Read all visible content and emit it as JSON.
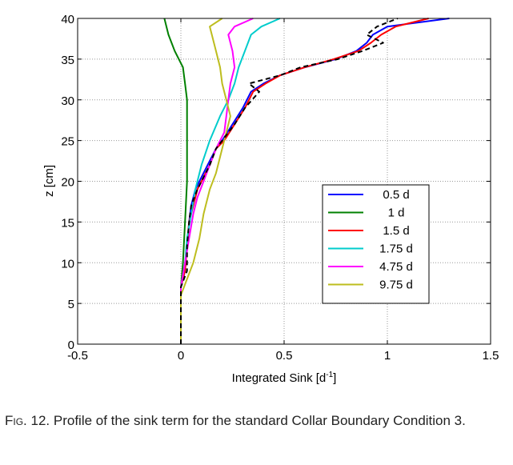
{
  "chart_data": {
    "type": "line",
    "title": "",
    "xlabel": "Integrated Sink [d",
    "xlabel_sup": "-1",
    "xlabel_end": "]",
    "ylabel": "z [cm]",
    "xlim": [
      -0.5,
      1.5
    ],
    "ylim": [
      0,
      40
    ],
    "x_ticks": [
      -0.5,
      0,
      0.5,
      1,
      1.5
    ],
    "x_tick_labels": [
      "-0.5",
      "0",
      "0.5",
      "1",
      "1.5"
    ],
    "y_ticks": [
      0,
      5,
      10,
      15,
      20,
      25,
      30,
      35,
      40
    ],
    "y_tick_labels": [
      "0",
      "5",
      "10",
      "15",
      "20",
      "25",
      "30",
      "35",
      "40"
    ],
    "grid": true,
    "legend_position": "lower-right",
    "series": [
      {
        "name": "0.5 d",
        "color": "#0000ff",
        "points": [
          [
            0,
            0
          ],
          [
            0,
            5
          ],
          [
            0,
            7
          ],
          [
            0.02,
            9
          ],
          [
            0.03,
            12
          ],
          [
            0.04,
            15
          ],
          [
            0.05,
            17
          ],
          [
            0.07,
            19
          ],
          [
            0.09,
            20
          ],
          [
            0.13,
            22
          ],
          [
            0.17,
            24
          ],
          [
            0.2,
            25
          ],
          [
            0.25,
            27
          ],
          [
            0.3,
            29
          ],
          [
            0.34,
            31
          ],
          [
            0.4,
            32
          ],
          [
            0.48,
            33
          ],
          [
            0.6,
            34
          ],
          [
            0.75,
            35
          ],
          [
            0.85,
            36
          ],
          [
            0.9,
            37
          ],
          [
            0.93,
            38
          ],
          [
            1.0,
            39
          ],
          [
            1.3,
            40
          ]
        ]
      },
      {
        "name": "1 d",
        "color": "#008000",
        "points": [
          [
            0,
            0
          ],
          [
            0,
            5
          ],
          [
            0,
            7
          ],
          [
            0.01,
            10
          ],
          [
            0.02,
            15
          ],
          [
            0.03,
            20
          ],
          [
            0.03,
            25
          ],
          [
            0.03,
            30
          ],
          [
            0.02,
            32
          ],
          [
            0.01,
            34
          ],
          [
            -0.03,
            36
          ],
          [
            -0.06,
            38
          ],
          [
            -0.08,
            40
          ]
        ]
      },
      {
        "name": "1.5 d",
        "color": "#ff0000",
        "points": [
          [
            0,
            0
          ],
          [
            0,
            5
          ],
          [
            0,
            7
          ],
          [
            0.02,
            9
          ],
          [
            0.03,
            12
          ],
          [
            0.04,
            15
          ],
          [
            0.06,
            17
          ],
          [
            0.08,
            19
          ],
          [
            0.1,
            20
          ],
          [
            0.14,
            22
          ],
          [
            0.17,
            24
          ],
          [
            0.21,
            25
          ],
          [
            0.26,
            27
          ],
          [
            0.31,
            29
          ],
          [
            0.35,
            31
          ],
          [
            0.41,
            32
          ],
          [
            0.48,
            33
          ],
          [
            0.6,
            34
          ],
          [
            0.74,
            35
          ],
          [
            0.86,
            36
          ],
          [
            0.92,
            37
          ],
          [
            0.97,
            38
          ],
          [
            1.04,
            39
          ],
          [
            1.2,
            40
          ]
        ]
      },
      {
        "name": "1.75 d",
        "color": "#00cccc",
        "points": [
          [
            0,
            0
          ],
          [
            0,
            5
          ],
          [
            0,
            7
          ],
          [
            0.02,
            10
          ],
          [
            0.03,
            13
          ],
          [
            0.05,
            16
          ],
          [
            0.07,
            19
          ],
          [
            0.1,
            22
          ],
          [
            0.14,
            25
          ],
          [
            0.19,
            28
          ],
          [
            0.23,
            30
          ],
          [
            0.26,
            32
          ],
          [
            0.28,
            34
          ],
          [
            0.31,
            36
          ],
          [
            0.34,
            38
          ],
          [
            0.39,
            39
          ],
          [
            0.48,
            40
          ]
        ]
      },
      {
        "name": "4.75 d",
        "color": "#ff00ff",
        "points": [
          [
            0,
            0
          ],
          [
            0,
            5
          ],
          [
            0,
            7
          ],
          [
            0.02,
            10
          ],
          [
            0.04,
            13
          ],
          [
            0.06,
            16
          ],
          [
            0.08,
            18
          ],
          [
            0.11,
            20
          ],
          [
            0.14,
            22
          ],
          [
            0.17,
            24
          ],
          [
            0.21,
            26
          ],
          [
            0.22,
            28
          ],
          [
            0.23,
            30
          ],
          [
            0.24,
            32
          ],
          [
            0.26,
            34
          ],
          [
            0.25,
            36
          ],
          [
            0.23,
            38
          ],
          [
            0.26,
            39
          ],
          [
            0.35,
            40
          ]
        ]
      },
      {
        "name": "9.75 d",
        "color": "#bdbd1e",
        "points": [
          [
            0,
            0
          ],
          [
            0,
            5
          ],
          [
            0,
            6
          ],
          [
            0.03,
            8
          ],
          [
            0.06,
            10
          ],
          [
            0.09,
            13
          ],
          [
            0.11,
            16
          ],
          [
            0.14,
            19
          ],
          [
            0.17,
            21
          ],
          [
            0.2,
            24
          ],
          [
            0.22,
            26
          ],
          [
            0.24,
            28
          ],
          [
            0.22,
            30
          ],
          [
            0.2,
            32
          ],
          [
            0.19,
            34
          ],
          [
            0.17,
            36
          ],
          [
            0.15,
            38
          ],
          [
            0.14,
            39
          ],
          [
            0.2,
            40
          ]
        ]
      },
      {
        "name": "",
        "color": "#000000",
        "dashed": true,
        "points": [
          [
            0,
            0
          ],
          [
            0,
            5
          ],
          [
            0,
            7
          ],
          [
            0.03,
            9
          ],
          [
            0.03,
            12
          ],
          [
            0.04,
            15
          ],
          [
            0.05,
            17
          ],
          [
            0.08,
            19
          ],
          [
            0.1,
            20
          ],
          [
            0.14,
            22
          ],
          [
            0.17,
            24
          ],
          [
            0.2,
            25
          ],
          [
            0.26,
            27
          ],
          [
            0.31,
            29
          ],
          [
            0.38,
            31
          ],
          [
            0.33,
            32
          ],
          [
            0.48,
            33
          ],
          [
            0.58,
            34
          ],
          [
            0.76,
            35
          ],
          [
            0.88,
            36
          ],
          [
            0.98,
            37
          ],
          [
            0.9,
            38
          ],
          [
            0.95,
            39
          ],
          [
            1.05,
            40
          ]
        ]
      }
    ]
  },
  "caption": {
    "fig_no": "Fig. 12.",
    "text": "Profile of the sink term for the standard Collar Boundary Condition 3."
  }
}
